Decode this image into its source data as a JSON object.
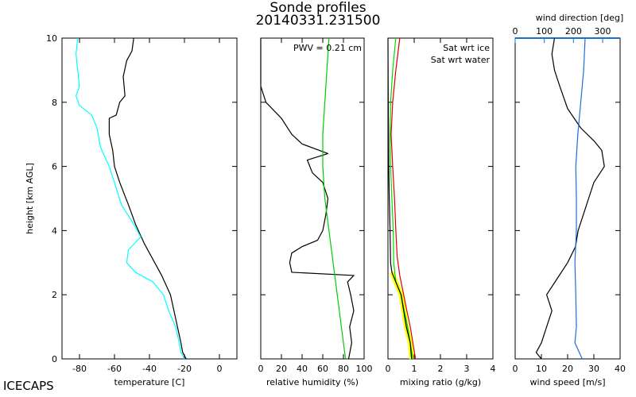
{
  "title_line1": "Sonde profiles",
  "title_line2": "20140331.231500",
  "brand": "ICECAPS",
  "y_label": "height [km AGL]",
  "y_ticks": [
    "0",
    "2",
    "4",
    "6",
    "8",
    "10"
  ],
  "colors": {
    "temp": "#000000",
    "dewpoint": "#00ffff",
    "rh": "#000000",
    "rh_ice": "#00cc00",
    "sat_ice": "#00dd00",
    "sat_water": "#dd0000",
    "mixing": "#000000",
    "mixing_band": "#ffff00",
    "wind_speed": "#000000",
    "wind_dir": "#1a6fd6"
  },
  "chart_data": [
    {
      "type": "line",
      "name": "temperature",
      "xlabel": "temperature [C]",
      "ylabel": "height [km AGL]",
      "xlim": [
        -90,
        10
      ],
      "ylim": [
        0,
        10
      ],
      "xticks": [
        "-80",
        "-60",
        "-40",
        "-20",
        "0"
      ],
      "series": [
        {
          "name": "temperature",
          "color": "#000000",
          "points": [
            [
              -19,
              0
            ],
            [
              -21,
              0.2
            ],
            [
              -22,
              0.5
            ],
            [
              -24,
              1.0
            ],
            [
              -26,
              1.5
            ],
            [
              -28,
              2.0
            ],
            [
              -33,
              2.6
            ],
            [
              -37,
              3.0
            ],
            [
              -43,
              3.6
            ],
            [
              -48,
              4.2
            ],
            [
              -52,
              4.8
            ],
            [
              -57,
              5.5
            ],
            [
              -60,
              6.0
            ],
            [
              -61,
              6.5
            ],
            [
              -63,
              7.0
            ],
            [
              -63,
              7.5
            ],
            [
              -59,
              7.6
            ],
            [
              -57,
              8.0
            ],
            [
              -54,
              8.2
            ],
            [
              -55,
              8.8
            ],
            [
              -53,
              9.3
            ],
            [
              -50,
              9.6
            ],
            [
              -49,
              10
            ]
          ]
        },
        {
          "name": "dewpoint",
          "color": "#00ffff",
          "points": [
            [
              -20,
              0
            ],
            [
              -22,
              0.2
            ],
            [
              -23,
              0.5
            ],
            [
              -25,
              1.0
            ],
            [
              -29,
              1.5
            ],
            [
              -32,
              2.0
            ],
            [
              -38,
              2.4
            ],
            [
              -48,
              2.7
            ],
            [
              -53,
              3.0
            ],
            [
              -52,
              3.4
            ],
            [
              -45,
              3.8
            ],
            [
              -49,
              4.2
            ],
            [
              -56,
              4.8
            ],
            [
              -60,
              5.5
            ],
            [
              -63,
              6.0
            ],
            [
              -68,
              6.6
            ],
            [
              -70,
              7.2
            ],
            [
              -73,
              7.6
            ],
            [
              -80,
              7.9
            ],
            [
              -82,
              8.2
            ],
            [
              -80,
              8.5
            ],
            [
              -81,
              9.0
            ],
            [
              -82,
              9.5
            ],
            [
              -81,
              10
            ]
          ]
        }
      ]
    },
    {
      "type": "line",
      "name": "relative_humidity",
      "xlabel": "relative humidity (%)",
      "xlim": [
        0,
        100
      ],
      "ylim": [
        0,
        10
      ],
      "xticks": [
        "0",
        "20",
        "40",
        "60",
        "80",
        "100"
      ],
      "annotation": "PWV = 0.21 cm",
      "series": [
        {
          "name": "rh",
          "color": "#000000",
          "points": [
            [
              85,
              0
            ],
            [
              88,
              0.5
            ],
            [
              86,
              1.0
            ],
            [
              90,
              1.5
            ],
            [
              87,
              2.0
            ],
            [
              84,
              2.4
            ],
            [
              90,
              2.6
            ],
            [
              30,
              2.7
            ],
            [
              28,
              3.0
            ],
            [
              30,
              3.3
            ],
            [
              40,
              3.5
            ],
            [
              55,
              3.7
            ],
            [
              60,
              4.0
            ],
            [
              63,
              4.5
            ],
            [
              65,
              5.0
            ],
            [
              60,
              5.5
            ],
            [
              50,
              5.8
            ],
            [
              45,
              6.2
            ],
            [
              65,
              6.4
            ],
            [
              40,
              6.7
            ],
            [
              30,
              7.0
            ],
            [
              20,
              7.5
            ],
            [
              5,
              8.0
            ],
            [
              2,
              8.3
            ],
            [
              0,
              8.5
            ],
            [
              0,
              10
            ]
          ]
        },
        {
          "name": "rh_ice",
          "color": "#00cc00",
          "points": [
            [
              82,
              0
            ],
            [
              78,
              1.0
            ],
            [
              74,
              2.0
            ],
            [
              70,
              3.0
            ],
            [
              66,
              4.0
            ],
            [
              62,
              5.0
            ],
            [
              60,
              6.0
            ],
            [
              60,
              7.0
            ],
            [
              62,
              8.0
            ],
            [
              64,
              9.0
            ],
            [
              66,
              10
            ]
          ]
        }
      ]
    },
    {
      "type": "line",
      "name": "mixing_ratio",
      "xlabel": "mixing ratio (g/kg)",
      "xlim": [
        0,
        4
      ],
      "ylim": [
        0,
        10
      ],
      "xticks": [
        "0",
        "1",
        "2",
        "3",
        "4"
      ],
      "legend": [
        "Sat wrt ice",
        "Sat wrt water"
      ],
      "series": [
        {
          "name": "Sat wrt ice",
          "color": "#00dd00",
          "points": [
            [
              0.95,
              0
            ],
            [
              0.85,
              0.5
            ],
            [
              0.75,
              1.0
            ],
            [
              0.62,
              1.5
            ],
            [
              0.5,
              2.0
            ],
            [
              0.3,
              2.4
            ],
            [
              0.22,
              3.0
            ],
            [
              0.2,
              4.0
            ],
            [
              0.15,
              5.0
            ],
            [
              0.1,
              6.0
            ],
            [
              0.08,
              7.0
            ],
            [
              0.1,
              8.0
            ],
            [
              0.18,
              9.0
            ],
            [
              0.3,
              10
            ]
          ]
        },
        {
          "name": "Sat wrt water",
          "color": "#dd0000",
          "points": [
            [
              1.05,
              0
            ],
            [
              0.95,
              0.5
            ],
            [
              0.85,
              1.0
            ],
            [
              0.72,
              1.5
            ],
            [
              0.6,
              2.0
            ],
            [
              0.45,
              2.6
            ],
            [
              0.35,
              3.2
            ],
            [
              0.3,
              4.0
            ],
            [
              0.25,
              5.0
            ],
            [
              0.18,
              6.0
            ],
            [
              0.12,
              7.0
            ],
            [
              0.18,
              8.0
            ],
            [
              0.3,
              9.0
            ],
            [
              0.45,
              10
            ]
          ]
        },
        {
          "name": "mixing ratio",
          "color": "#000000",
          "points": [
            [
              0.9,
              0
            ],
            [
              0.85,
              0.5
            ],
            [
              0.7,
              1.0
            ],
            [
              0.6,
              1.5
            ],
            [
              0.5,
              2.0
            ],
            [
              0.3,
              2.4
            ],
            [
              0.15,
              2.7
            ],
            [
              0.1,
              3.0
            ],
            [
              0.08,
              4.0
            ],
            [
              0.05,
              5.0
            ],
            [
              0.03,
              6.0
            ],
            [
              0.02,
              7.0
            ],
            [
              0.01,
              8.0
            ],
            [
              0,
              10
            ]
          ]
        }
      ]
    },
    {
      "type": "line",
      "name": "wind",
      "xlabel": "wind speed [m/s]",
      "top_xlabel": "wind direction [deg]",
      "xlim": [
        0,
        40
      ],
      "ylim": [
        0,
        10
      ],
      "xticks": [
        "0",
        "10",
        "20",
        "30",
        "40"
      ],
      "top_xlim": [
        0,
        360
      ],
      "top_xticks": [
        "0",
        "100",
        "200",
        "300"
      ],
      "series": [
        {
          "name": "wind speed",
          "color": "#000000",
          "points": [
            [
              10,
              0
            ],
            [
              8,
              0.2
            ],
            [
              10,
              0.5
            ],
            [
              12,
              1.0
            ],
            [
              14,
              1.5
            ],
            [
              12,
              2.0
            ],
            [
              16,
              2.5
            ],
            [
              20,
              3.0
            ],
            [
              23,
              3.5
            ],
            [
              24,
              4.0
            ],
            [
              26,
              4.5
            ],
            [
              28,
              5.0
            ],
            [
              30,
              5.5
            ],
            [
              34,
              6.0
            ],
            [
              33,
              6.5
            ],
            [
              30,
              6.8
            ],
            [
              25,
              7.2
            ],
            [
              20,
              7.8
            ],
            [
              17,
              8.5
            ],
            [
              15,
              9.0
            ],
            [
              14,
              9.5
            ],
            [
              15,
              10
            ]
          ]
        },
        {
          "name": "wind direction",
          "color": "#1a6fd6",
          "axis": "top",
          "points": [
            [
              230,
              0
            ],
            [
              205,
              0.5
            ],
            [
              210,
              1.0
            ],
            [
              208,
              2.0
            ],
            [
              205,
              3.0
            ],
            [
              210,
              4.0
            ],
            [
              210,
              5.0
            ],
            [
              208,
              6.0
            ],
            [
              215,
              7.0
            ],
            [
              225,
              8.0
            ],
            [
              235,
              9.0
            ],
            [
              240,
              10
            ]
          ]
        }
      ]
    }
  ]
}
